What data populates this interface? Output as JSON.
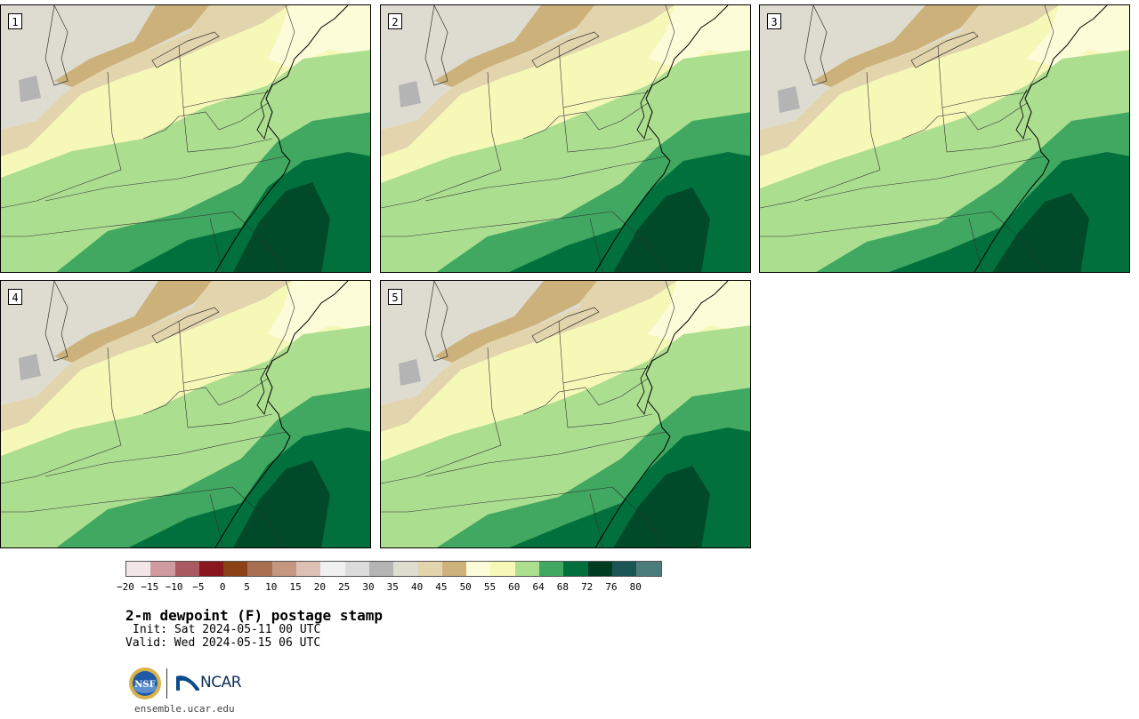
{
  "panels": [
    {
      "label": "1",
      "variant": 0
    },
    {
      "label": "2",
      "variant": 1
    },
    {
      "label": "3",
      "variant": 2
    },
    {
      "label": "4",
      "variant": 3
    },
    {
      "label": "5",
      "variant": 4
    }
  ],
  "colorbar": {
    "ticks": [
      "−20",
      "−15",
      "−10",
      "−5",
      "0",
      "5",
      "10",
      "15",
      "20",
      "25",
      "30",
      "35",
      "40",
      "45",
      "50",
      "55",
      "60",
      "64",
      "68",
      "72",
      "76",
      "80"
    ],
    "colors": [
      "#f2e6e6",
      "#cf9aa0",
      "#a85a60",
      "#8a1620",
      "#8a4216",
      "#a87050",
      "#c49880",
      "#dcc0b4",
      "#f0f0f0",
      "#dcdcdc",
      "#b4b4b4",
      "#deded0",
      "#e2d4ac",
      "#ccb27a",
      "#fcfcd8",
      "#f6f8b8",
      "#acde90",
      "#40a860",
      "#02703c",
      "#003c22",
      "#1a5454",
      "#4c7c7c"
    ]
  },
  "labels": {
    "title": "2-m dewpoint (F) postage stamp",
    "init": "Init: Sat 2024-05-11 00 UTC",
    "valid": "Valid: Wed 2024-05-15 06 UTC",
    "ncar": "NCAR",
    "nsf": "NSF",
    "site": "ensemble.ucar.edu"
  },
  "colors": {
    "dry": "#dedcd0",
    "tan": "#e2d4ac",
    "brown": "#ccb27a",
    "cream": "#fcfcd8",
    "pale": "#f6f8b8",
    "lightgreen": "#acde90",
    "green": "#40a860",
    "darkgreen": "#02703c",
    "deepgreen": "#004a2a",
    "gray": "#b4b4b4"
  }
}
